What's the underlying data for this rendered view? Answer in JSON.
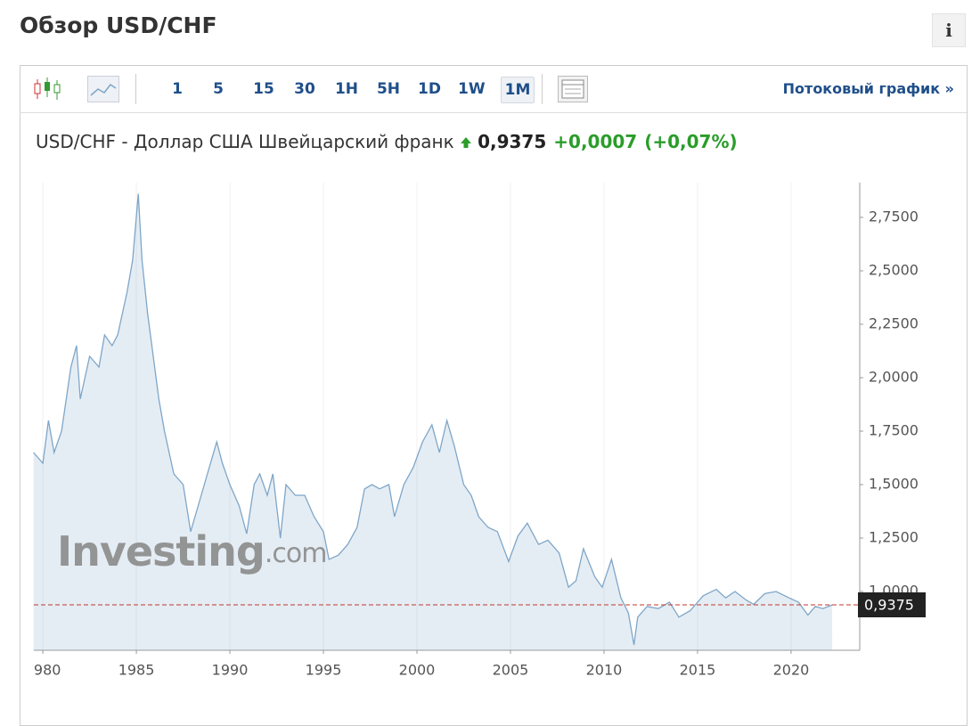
{
  "header": {
    "title": "Обзор USD/CHF",
    "info": "i"
  },
  "toolbar": {
    "intervals": [
      "1",
      "5",
      "15",
      "30",
      "1H",
      "5H",
      "1D",
      "1W",
      "1M"
    ],
    "active": "1M",
    "stream_link": "Потоковый график »"
  },
  "quote": {
    "name": "USD/CHF - Доллар США Швейцарский франк",
    "price": "0,9375",
    "change": "+0,0007",
    "change_pct": "(+0,07%)"
  },
  "chart_data": {
    "type": "area",
    "watermark": {
      "brand": "Investing",
      "suffix": ".com"
    },
    "x": [
      1979.5,
      1980,
      1980.3,
      1980.6,
      1981,
      1981.5,
      1981.8,
      1982,
      1982.5,
      1983,
      1983.3,
      1983.7,
      1984,
      1984.5,
      1984.8,
      1985.1,
      1985.3,
      1985.6,
      1985.9,
      1986.2,
      1986.5,
      1987,
      1987.5,
      1987.9,
      1988.3,
      1988.8,
      1989.3,
      1989.6,
      1990,
      1990.5,
      1990.9,
      1991.3,
      1991.6,
      1992,
      1992.3,
      1992.7,
      1993,
      1993.5,
      1994,
      1994.5,
      1995,
      1995.3,
      1995.8,
      1996.3,
      1996.8,
      1997.2,
      1997.6,
      1998,
      1998.5,
      1998.8,
      1999.3,
      1999.8,
      2000.3,
      2000.8,
      2001.2,
      2001.6,
      2002,
      2002.5,
      2002.9,
      2003.3,
      2003.8,
      2004.3,
      2004.9,
      2005.4,
      2005.9,
      2006.5,
      2007,
      2007.6,
      2008.1,
      2008.5,
      2008.9,
      2009.5,
      2009.9,
      2010.4,
      2010.9,
      2011.3,
      2011.6,
      2011.8,
      2012.3,
      2012.9,
      2013.5,
      2014,
      2014.6,
      2015,
      2015.3,
      2016,
      2016.5,
      2017,
      2017.6,
      2018,
      2018.6,
      2019.2,
      2019.9,
      2020.4,
      2020.9,
      2021.3,
      2021.7,
      2022.2
    ],
    "series": [
      {
        "name": "USD/CHF",
        "color": "#7ea6c9",
        "values": [
          1.65,
          1.6,
          1.8,
          1.65,
          1.75,
          2.05,
          2.15,
          1.9,
          2.1,
          2.05,
          2.2,
          2.15,
          2.2,
          2.4,
          2.55,
          2.86,
          2.55,
          2.3,
          2.1,
          1.9,
          1.75,
          1.55,
          1.5,
          1.28,
          1.4,
          1.55,
          1.7,
          1.6,
          1.5,
          1.4,
          1.27,
          1.5,
          1.55,
          1.45,
          1.55,
          1.25,
          1.5,
          1.45,
          1.45,
          1.35,
          1.28,
          1.15,
          1.17,
          1.22,
          1.3,
          1.48,
          1.5,
          1.48,
          1.5,
          1.35,
          1.5,
          1.58,
          1.7,
          1.78,
          1.65,
          1.8,
          1.68,
          1.5,
          1.45,
          1.35,
          1.3,
          1.28,
          1.14,
          1.26,
          1.32,
          1.22,
          1.24,
          1.18,
          1.02,
          1.05,
          1.2,
          1.07,
          1.02,
          1.15,
          0.97,
          0.9,
          0.75,
          0.88,
          0.93,
          0.92,
          0.95,
          0.88,
          0.91,
          0.95,
          0.98,
          1.01,
          0.97,
          1.0,
          0.96,
          0.94,
          0.99,
          1.0,
          0.97,
          0.95,
          0.89,
          0.93,
          0.92,
          0.9375
        ]
      }
    ],
    "reference_line": {
      "value": 0.9375,
      "label": "0,9375",
      "color": "#c0392b"
    },
    "xlim": [
      1979.52,
      2023.67
    ],
    "xticks": [
      1980,
      1985,
      1990,
      1995,
      2000,
      2005,
      2010,
      2015,
      2020
    ],
    "ylim": [
      0.725,
      2.9125
    ],
    "yticks": [
      {
        "value": 1.0,
        "label": "1,0000"
      },
      {
        "value": 1.25,
        "label": "1,2500"
      },
      {
        "value": 1.5,
        "label": "1,5000"
      },
      {
        "value": 1.75,
        "label": "1,7500"
      },
      {
        "value": 2.0,
        "label": "2,0000"
      },
      {
        "value": 2.25,
        "label": "2,2500"
      },
      {
        "value": 2.5,
        "label": "2,5000"
      },
      {
        "value": 2.75,
        "label": "2,7500"
      }
    ],
    "grid": "x"
  }
}
